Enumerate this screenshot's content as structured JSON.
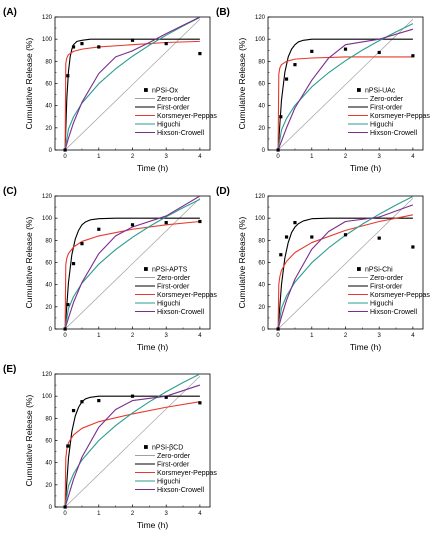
{
  "figure": {
    "curve_colors": {
      "Zero-order": "#a0a0a0",
      "First-order": "#000000",
      "Korsmeyer-Peppas": "#e8392c",
      "Higuchi": "#2a9d8f",
      "Hixson-Crowell": "#7b2d8e"
    }
  },
  "chart_data": [
    {
      "type": "scatter",
      "panel_label": "(A)",
      "xlabel": "Time (h)",
      "ylabel": "Cumulative Release (%)",
      "xlim": [
        -0.3,
        4.3
      ],
      "ylim": [
        0,
        120
      ],
      "xticks": [
        "0",
        "1",
        "2",
        "3",
        "4"
      ],
      "yticks": [
        "0",
        "20",
        "40",
        "60",
        "80",
        "100",
        "120"
      ],
      "legend_position": "center-right",
      "grid": false,
      "series": [
        {
          "name": "nPSi-Ox",
          "kind": "points",
          "x": [
            0,
            0.08,
            0.25,
            0.5,
            1,
            2,
            3,
            4
          ],
          "y": [
            0,
            67,
            93,
            96,
            93,
            99,
            96,
            87
          ]
        },
        {
          "name": "Zero-order",
          "kind": "line",
          "x": [
            0,
            4
          ],
          "y": [
            0,
            118
          ]
        },
        {
          "name": "First-order",
          "kind": "line",
          "x": [
            0,
            0.05,
            0.1,
            0.15,
            0.2,
            0.25,
            0.35,
            0.5,
            0.75,
            1,
            1.5,
            2,
            3,
            4
          ],
          "y": [
            0,
            46,
            71,
            84,
            91,
            95,
            98,
            99,
            100,
            100,
            100,
            100,
            100,
            100
          ]
        },
        {
          "name": "Korsmeyer-Peppas",
          "kind": "line",
          "x": [
            0,
            0.02,
            0.05,
            0.1,
            0.25,
            0.5,
            1,
            2,
            3,
            4
          ],
          "y": [
            0,
            78,
            83,
            86,
            89,
            91,
            93,
            95,
            97,
            98
          ]
        },
        {
          "name": "Higuchi",
          "kind": "line",
          "x": [
            0,
            0.1,
            0.25,
            0.5,
            1,
            1.5,
            2,
            2.5,
            3,
            3.5,
            4
          ],
          "y": [
            0,
            18.9,
            29.9,
            42.3,
            59.8,
            73.2,
            84.6,
            94.6,
            103.6,
            111.9,
            119.6
          ]
        },
        {
          "name": "Hixson-Crowell",
          "kind": "line",
          "x": [
            0,
            0.1,
            0.25,
            0.5,
            1,
            1.5,
            2,
            2.5,
            3,
            4
          ],
          "y": [
            0,
            10.7,
            24.6,
            43,
            69,
            84,
            89.5,
            97,
            105,
            120
          ]
        }
      ]
    },
    {
      "type": "scatter",
      "panel_label": "(B)",
      "xlabel": "Time (h)",
      "ylabel": "Cumulative Release (%)",
      "xlim": [
        -0.3,
        4.3
      ],
      "ylim": [
        0,
        120
      ],
      "xticks": [
        "0",
        "1",
        "2",
        "3",
        "4"
      ],
      "yticks": [
        "0",
        "20",
        "40",
        "60",
        "80",
        "100",
        "120"
      ],
      "legend_position": "center-right",
      "grid": false,
      "series": [
        {
          "name": "nPSi-UAc",
          "kind": "points",
          "x": [
            0,
            0.08,
            0.25,
            0.5,
            1,
            2,
            3,
            4
          ],
          "y": [
            0,
            30,
            64,
            77,
            89,
            91,
            88,
            85
          ]
        },
        {
          "name": "Zero-order",
          "kind": "line",
          "x": [
            0,
            4
          ],
          "y": [
            0,
            118
          ]
        },
        {
          "name": "First-order",
          "kind": "line",
          "x": [
            0,
            0.1,
            0.2,
            0.3,
            0.4,
            0.5,
            0.6,
            0.75,
            1,
            1.5,
            2,
            3,
            4
          ],
          "y": [
            0,
            45,
            70,
            84,
            91,
            95,
            97.5,
            99,
            100,
            100,
            100,
            100,
            100
          ]
        },
        {
          "name": "Korsmeyer-Peppas",
          "kind": "line",
          "x": [
            0,
            0.02,
            0.05,
            0.1,
            0.25,
            0.5,
            1,
            2,
            3,
            4
          ],
          "y": [
            0,
            68,
            74,
            77,
            80,
            82,
            83,
            84,
            84,
            84
          ]
        },
        {
          "name": "Higuchi",
          "kind": "line",
          "x": [
            0,
            0.1,
            0.25,
            0.5,
            1,
            1.5,
            2,
            2.5,
            3,
            3.5,
            4
          ],
          "y": [
            0,
            18,
            28.5,
            40.3,
            57,
            69.8,
            80.6,
            90.1,
            98.7,
            106.6,
            114
          ]
        },
        {
          "name": "Hixson-Crowell",
          "kind": "line",
          "x": [
            0,
            0.1,
            0.25,
            0.5,
            1,
            1.5,
            2,
            3,
            4
          ],
          "y": [
            0,
            8,
            20,
            38,
            63,
            83,
            95,
            100,
            109
          ]
        }
      ]
    },
    {
      "type": "scatter",
      "panel_label": "(C)",
      "xlabel": "Time (h)",
      "ylabel": "Cumulative Release (%)",
      "xlim": [
        -0.3,
        4.3
      ],
      "ylim": [
        0,
        120
      ],
      "xticks": [
        "0",
        "1",
        "2",
        "3",
        "4"
      ],
      "yticks": [
        "0",
        "20",
        "40",
        "60",
        "80",
        "100",
        "120"
      ],
      "legend_position": "center-right",
      "grid": false,
      "series": [
        {
          "name": "nPSi-APTS",
          "kind": "points",
          "x": [
            0,
            0.08,
            0.25,
            0.5,
            1,
            2,
            3,
            4
          ],
          "y": [
            0,
            22,
            59,
            77,
            90,
            94,
            96,
            97
          ]
        },
        {
          "name": "Zero-order",
          "kind": "line",
          "x": [
            0,
            4
          ],
          "y": [
            0,
            118
          ]
        },
        {
          "name": "First-order",
          "kind": "line",
          "x": [
            0,
            0.1,
            0.2,
            0.3,
            0.4,
            0.5,
            0.6,
            0.75,
            1,
            1.5,
            2,
            3,
            4
          ],
          "y": [
            0,
            42,
            67,
            81,
            89,
            94,
            96.5,
            98.5,
            99.5,
            100,
            100,
            100,
            100
          ]
        },
        {
          "name": "Korsmeyer-Peppas",
          "kind": "line",
          "x": [
            0,
            0.02,
            0.05,
            0.1,
            0.25,
            0.5,
            1,
            2,
            3,
            4
          ],
          "y": [
            0,
            58,
            64,
            68,
            74,
            79,
            84,
            90,
            94,
            97
          ]
        },
        {
          "name": "Higuchi",
          "kind": "line",
          "x": [
            0,
            0.1,
            0.25,
            0.5,
            1,
            1.5,
            2,
            2.5,
            3,
            3.5,
            4
          ],
          "y": [
            0,
            18.5,
            29.2,
            41.4,
            58.5,
            71.7,
            82.7,
            92.5,
            101.3,
            109.4,
            117
          ]
        },
        {
          "name": "Hixson-Crowell",
          "kind": "line",
          "x": [
            0,
            0.1,
            0.25,
            0.5,
            1,
            1.5,
            2,
            3,
            4
          ],
          "y": [
            0,
            10,
            24,
            42,
            68,
            84,
            92,
            102,
            120
          ]
        }
      ]
    },
    {
      "type": "scatter",
      "panel_label": "(D)",
      "xlabel": "Time (h)",
      "ylabel": "Cumulative Release (%)",
      "xlim": [
        -0.3,
        4.3
      ],
      "ylim": [
        0,
        120
      ],
      "xticks": [
        "0",
        "1",
        "2",
        "3",
        "4"
      ],
      "yticks": [
        "0",
        "20",
        "40",
        "60",
        "80",
        "100",
        "120"
      ],
      "legend_position": "center-right",
      "grid": false,
      "series": [
        {
          "name": "nPSi-Chi",
          "kind": "points",
          "x": [
            0,
            0.08,
            0.25,
            0.5,
            1,
            2,
            3,
            4
          ],
          "y": [
            0,
            67,
            83,
            96,
            83,
            85,
            82,
            74
          ]
        },
        {
          "name": "Zero-order",
          "kind": "line",
          "x": [
            0,
            4
          ],
          "y": [
            0,
            118
          ]
        },
        {
          "name": "First-order",
          "kind": "line",
          "x": [
            0,
            0.1,
            0.2,
            0.3,
            0.4,
            0.5,
            0.6,
            0.75,
            1,
            1.5,
            2,
            3,
            4
          ],
          "y": [
            0,
            40,
            64,
            78,
            87,
            92,
            95,
            97.5,
            99.5,
            100,
            100,
            100,
            100
          ]
        },
        {
          "name": "Korsmeyer-Peppas",
          "kind": "line",
          "x": [
            0,
            0.02,
            0.05,
            0.1,
            0.25,
            0.5,
            1,
            2,
            3,
            4
          ],
          "y": [
            0,
            40,
            47,
            53,
            61,
            69,
            78,
            89,
            97,
            103
          ]
        },
        {
          "name": "Higuchi",
          "kind": "line",
          "x": [
            0,
            0.1,
            0.25,
            0.5,
            1,
            1.5,
            2,
            2.5,
            3,
            3.5,
            4
          ],
          "y": [
            0,
            18.9,
            29.9,
            42.3,
            59.8,
            73.2,
            84.6,
            94.6,
            103.6,
            111.9,
            119.6
          ]
        },
        {
          "name": "Hixson-Crowell",
          "kind": "line",
          "x": [
            0,
            0.1,
            0.25,
            0.5,
            1,
            1.5,
            2,
            3,
            4
          ],
          "y": [
            0,
            11,
            26,
            45,
            72,
            88,
            97,
            101,
            112
          ]
        }
      ]
    },
    {
      "type": "scatter",
      "panel_label": "(E)",
      "xlabel": "Time (h)",
      "ylabel": "Cumulative Release (%)",
      "xlim": [
        -0.3,
        4.3
      ],
      "ylim": [
        0,
        120
      ],
      "xticks": [
        "0",
        "1",
        "2",
        "3",
        "4"
      ],
      "yticks": [
        "0",
        "20",
        "40",
        "60",
        "80",
        "100",
        "120"
      ],
      "legend_position": "center-right",
      "grid": false,
      "series": [
        {
          "name": "nPSi-βCD",
          "kind": "points",
          "x": [
            0,
            0.08,
            0.25,
            0.5,
            1,
            2,
            3,
            4
          ],
          "y": [
            0,
            55,
            87,
            95,
            96,
            100,
            99,
            94
          ]
        },
        {
          "name": "Zero-order",
          "kind": "line",
          "x": [
            0,
            4
          ],
          "y": [
            0,
            118
          ]
        },
        {
          "name": "First-order",
          "kind": "line",
          "x": [
            0,
            0.1,
            0.2,
            0.3,
            0.4,
            0.5,
            0.6,
            0.75,
            1,
            1.5,
            2,
            3,
            4
          ],
          "y": [
            0,
            44,
            68,
            82,
            90,
            95,
            97.5,
            99,
            100,
            100,
            100,
            100,
            100
          ]
        },
        {
          "name": "Korsmeyer-Peppas",
          "kind": "line",
          "x": [
            0,
            0.02,
            0.05,
            0.1,
            0.25,
            0.5,
            1,
            2,
            3,
            4
          ],
          "y": [
            0,
            44,
            52,
            58,
            65,
            71,
            77,
            84,
            90,
            95
          ]
        },
        {
          "name": "Higuchi",
          "kind": "line",
          "x": [
            0,
            0.1,
            0.25,
            0.5,
            1,
            1.5,
            2,
            2.5,
            3,
            3.5,
            4
          ],
          "y": [
            0,
            19,
            30,
            42.4,
            60,
            73.5,
            84.9,
            94.9,
            104,
            112.3,
            120
          ]
        },
        {
          "name": "Hixson-Crowell",
          "kind": "line",
          "x": [
            0,
            0.1,
            0.25,
            0.5,
            1,
            1.5,
            2,
            3,
            4
          ],
          "y": [
            0,
            10,
            25,
            45,
            72,
            88,
            96,
            100,
            110
          ]
        }
      ]
    }
  ]
}
